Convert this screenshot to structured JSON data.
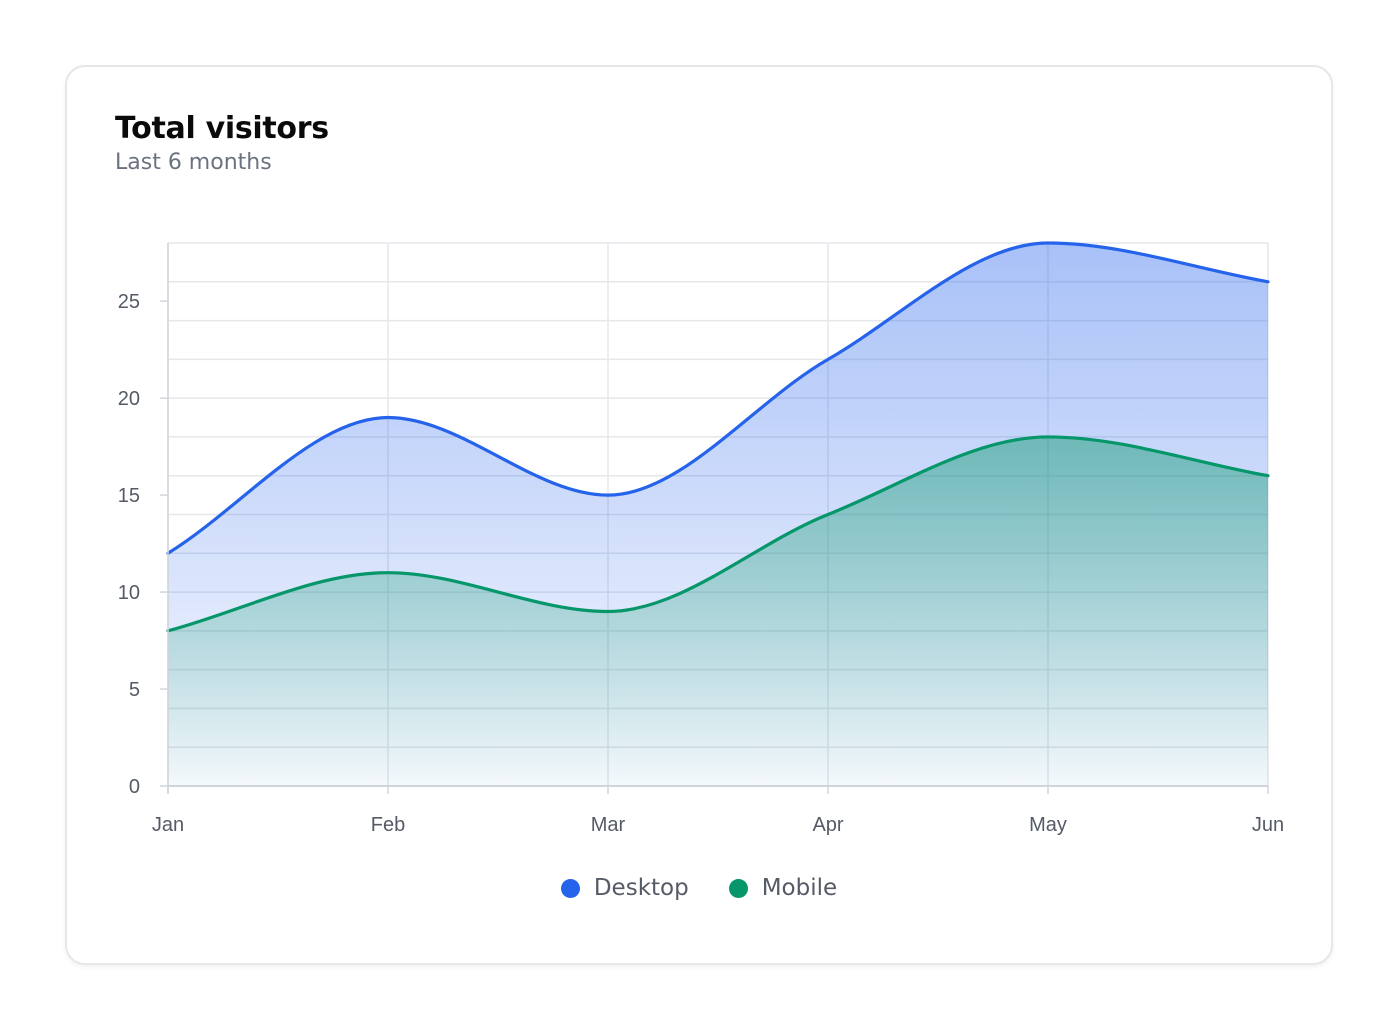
{
  "card": {
    "title": "Total visitors",
    "subtitle": "Last 6 months"
  },
  "colors": {
    "desktop": "#2563eb",
    "mobile": "#059669",
    "grid": "#e5e7eb",
    "tick_text": "#555b66"
  },
  "chart_data": {
    "type": "area",
    "title": "Total visitors",
    "subtitle": "Last 6 months",
    "xlabel": "",
    "ylabel": "",
    "categories": [
      "Jan",
      "Feb",
      "Mar",
      "Apr",
      "May",
      "Jun"
    ],
    "series": [
      {
        "name": "Desktop",
        "color": "#2563eb",
        "values": [
          12,
          19,
          15,
          22,
          28,
          26
        ]
      },
      {
        "name": "Mobile",
        "color": "#059669",
        "values": [
          8,
          11,
          9,
          14,
          18,
          16
        ]
      }
    ],
    "ylim": [
      0,
      28
    ],
    "yticks": [
      0,
      5,
      10,
      15,
      20,
      25
    ],
    "grid": true,
    "legend": "bottom-center"
  }
}
